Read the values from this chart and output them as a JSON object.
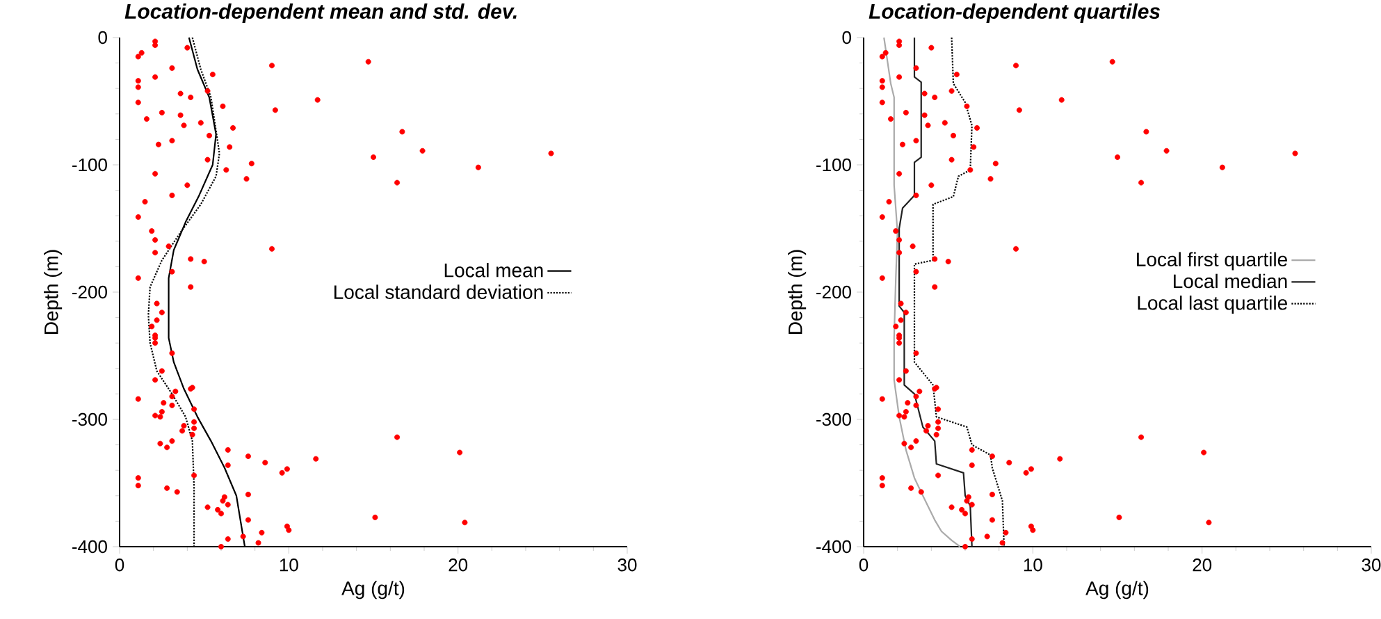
{
  "chart_data": [
    {
      "type": "scatter",
      "title": "Location-dependent mean and std. dev.",
      "xlabel": "Ag (g/t)",
      "ylabel": "Depth (m)",
      "xlim": [
        0,
        30
      ],
      "ylim": [
        -400,
        0
      ],
      "xticks": [
        0,
        10,
        20,
        30
      ],
      "yticks": [
        -400,
        -300,
        -200,
        -100,
        0
      ],
      "legend": "right",
      "series": [
        {
          "color": "#ff0000",
          "marker": "circle",
          "x": [
            2.1,
            2.1,
            4.0,
            1.3,
            1.1,
            3.1,
            9.0,
            14.7,
            5.5,
            2.1,
            1.1,
            1.1,
            3.6,
            4.2,
            5.2,
            11.7,
            1.1,
            6.1,
            9.2,
            2.5,
            3.6,
            1.6,
            4.8,
            3.8,
            6.7,
            5.3,
            3.1,
            2.3,
            6.5,
            15.0,
            5.2,
            7.8,
            6.3,
            2.1,
            7.5,
            4.0,
            3.1,
            1.5,
            1.1,
            9.0,
            1.9,
            2.1,
            2.1,
            2.9,
            4.2,
            5.0,
            3.1,
            1.1,
            4.2,
            16.7,
            17.9,
            25.5,
            21.2,
            16.4,
            16.4,
            20.1,
            15.1,
            20.4,
            2.2,
            2.5,
            2.2,
            1.9,
            2.1,
            2.1,
            2.1,
            3.1,
            2.5,
            2.1,
            4.3,
            4.2,
            3.3,
            3.1,
            1.1,
            2.6,
            3.1,
            4.4,
            2.5,
            2.1,
            2.4,
            4.4,
            3.8,
            4.4,
            3.7,
            4.3,
            3.1,
            2.4,
            2.8,
            6.4,
            7.6,
            11.6,
            8.6,
            6.4,
            9.9,
            9.6,
            4.4,
            1.1,
            1.1,
            2.8,
            3.4,
            7.6,
            6.2,
            6.1,
            6.4,
            5.2,
            5.8,
            6.0,
            7.6,
            9.9,
            10.0,
            8.4,
            7.3,
            6.4,
            8.2,
            6.0
          ],
          "values": [
            -3,
            -6,
            -8,
            -12,
            -15,
            -24,
            -22,
            -19,
            -29,
            -31,
            -34,
            -39,
            -44,
            -47,
            -42,
            -49,
            -51,
            -54,
            -57,
            -59,
            -61,
            -64,
            -67,
            -69,
            -71,
            -77,
            -81,
            -84,
            -86,
            -94,
            -96,
            -99,
            -104,
            -107,
            -111,
            -116,
            -124,
            -129,
            -141,
            -166,
            -152,
            -159,
            -169,
            -164,
            -174,
            -176,
            -184,
            -189,
            -196,
            -74,
            -89,
            -91,
            -102,
            -114,
            -314,
            -326,
            -377,
            -381,
            -209,
            -216,
            -222,
            -227,
            -234,
            -236,
            -240,
            -248,
            -262,
            -269,
            -275,
            -276,
            -278,
            -282,
            -284,
            -287,
            -289,
            -292,
            -294,
            -297,
            -298,
            -302,
            -305,
            -307,
            -309,
            -312,
            -317,
            -319,
            -322,
            -324,
            -329,
            -331,
            -334,
            -336,
            -339,
            -342,
            -344,
            -346,
            -352,
            -354,
            -357,
            -359,
            -361,
            -364,
            -367,
            -369,
            -371,
            -374,
            -379,
            -384,
            -387,
            -389,
            -392,
            -394,
            -397,
            -400
          ]
        },
        {
          "type": "line",
          "name": "Local mean",
          "color": "#000000",
          "line_style": "solid",
          "marker": "none",
          "x": [
            4.1,
            4.6,
            5.3,
            5.7,
            5.5,
            4.7,
            3.9,
            3.2,
            2.9,
            2.9,
            3.2,
            3.8,
            4.6,
            5.4,
            6.2,
            6.9,
            7.4
          ],
          "values": [
            0,
            -25,
            -47,
            -76,
            -100,
            -124,
            -145,
            -167,
            -189,
            -236,
            -255,
            -276,
            -298,
            -317,
            -338,
            -360,
            -400
          ]
        },
        {
          "type": "line",
          "name": "Local standard deviation",
          "color": "#000000",
          "line_style": "dotted",
          "marker": "none",
          "x": [
            4.3,
            4.8,
            5.4,
            5.9,
            5.7,
            4.8,
            3.6,
            2.5,
            1.8,
            1.7,
            1.8,
            2.2,
            3.1,
            3.9,
            4.3,
            4.4,
            4.4
          ],
          "values": [
            0,
            -25,
            -47,
            -91,
            -109,
            -131,
            -153,
            -175,
            -196,
            -218,
            -240,
            -262,
            -280,
            -298,
            -317,
            -353,
            -400
          ]
        }
      ]
    },
    {
      "type": "scatter",
      "title": "Location-dependent quartiles",
      "xlabel": "Ag (g/t)",
      "ylabel": "Depth (m)",
      "xlim": [
        0,
        30
      ],
      "ylim": [
        -400,
        0
      ],
      "xticks": [
        0,
        10,
        20,
        30
      ],
      "yticks": [
        -400,
        -300,
        -200,
        -100,
        0
      ],
      "legend": "right",
      "series": [
        {
          "color": "#ff0000",
          "marker": "circle",
          "x": [
            2.1,
            2.1,
            4.0,
            1.3,
            1.1,
            3.1,
            9.0,
            14.7,
            5.5,
            2.1,
            1.1,
            1.1,
            3.6,
            4.2,
            5.2,
            11.7,
            1.1,
            6.1,
            9.2,
            2.5,
            3.6,
            1.6,
            4.8,
            3.8,
            6.7,
            5.3,
            3.1,
            2.3,
            6.5,
            15.0,
            5.2,
            7.8,
            6.3,
            2.1,
            7.5,
            4.0,
            3.1,
            1.5,
            1.1,
            9.0,
            1.9,
            2.1,
            2.1,
            2.9,
            4.2,
            5.0,
            3.1,
            1.1,
            4.2,
            16.7,
            17.9,
            25.5,
            21.2,
            16.4,
            16.4,
            20.1,
            15.1,
            20.4,
            2.2,
            2.5,
            2.2,
            1.9,
            2.1,
            2.1,
            2.1,
            3.1,
            2.5,
            2.1,
            4.3,
            4.2,
            3.3,
            3.1,
            1.1,
            2.6,
            3.1,
            4.4,
            2.5,
            2.1,
            2.4,
            4.4,
            3.8,
            4.4,
            3.7,
            4.3,
            3.1,
            2.4,
            2.8,
            6.4,
            7.6,
            11.6,
            8.6,
            6.4,
            9.9,
            9.6,
            4.4,
            1.1,
            1.1,
            2.8,
            3.4,
            7.6,
            6.2,
            6.1,
            6.4,
            5.2,
            5.8,
            6.0,
            7.6,
            9.9,
            10.0,
            8.4,
            7.3,
            6.4,
            8.2,
            6.0
          ],
          "values": [
            -3,
            -6,
            -8,
            -12,
            -15,
            -24,
            -22,
            -19,
            -29,
            -31,
            -34,
            -39,
            -44,
            -47,
            -42,
            -49,
            -51,
            -54,
            -57,
            -59,
            -61,
            -64,
            -67,
            -69,
            -71,
            -77,
            -81,
            -84,
            -86,
            -94,
            -96,
            -99,
            -104,
            -107,
            -111,
            -116,
            -124,
            -129,
            -141,
            -166,
            -152,
            -159,
            -169,
            -164,
            -174,
            -176,
            -184,
            -189,
            -196,
            -74,
            -89,
            -91,
            -102,
            -114,
            -314,
            -326,
            -377,
            -381,
            -209,
            -216,
            -222,
            -227,
            -234,
            -236,
            -240,
            -248,
            -262,
            -269,
            -275,
            -276,
            -278,
            -282,
            -284,
            -287,
            -289,
            -292,
            -294,
            -297,
            -298,
            -302,
            -305,
            -307,
            -309,
            -312,
            -317,
            -319,
            -322,
            -324,
            -329,
            -331,
            -334,
            -336,
            -339,
            -342,
            -344,
            -346,
            -352,
            -354,
            -357,
            -359,
            -361,
            -364,
            -367,
            -369,
            -371,
            -374,
            -379,
            -384,
            -387,
            -389,
            -392,
            -394,
            -397,
            -400
          ]
        },
        {
          "type": "line",
          "name": "Local first quartile",
          "color": "#aaaaaa",
          "line_style": "solid",
          "marker": "none",
          "x": [
            1.2,
            1.6,
            1.8,
            1.8,
            2.0,
            1.9,
            1.8,
            1.8,
            2.1,
            2.5,
            3.0,
            3.5,
            4.2,
            4.6,
            5.2,
            5.7
          ],
          "values": [
            0,
            -36,
            -47,
            -116,
            -153,
            -189,
            -236,
            -269,
            -298,
            -324,
            -346,
            -360,
            -379,
            -388,
            -395,
            -400
          ]
        },
        {
          "type": "line",
          "name": "Local median",
          "color": "#222222",
          "line_style": "solid",
          "marker": "none",
          "x": [
            3.0,
            3.0,
            3.4,
            3.4,
            3.0,
            3.0,
            2.3,
            2.1,
            2.1,
            2.4,
            2.4,
            3.0,
            3.5,
            4.2,
            4.3,
            5.9,
            6.0,
            6.3,
            6.4
          ],
          "values": [
            0,
            -31,
            -35,
            -94,
            -98,
            -124,
            -134,
            -150,
            -211,
            -216,
            -273,
            -280,
            -306,
            -317,
            -335,
            -342,
            -360,
            -368,
            -400
          ]
        },
        {
          "type": "line",
          "name": "Local last quartile",
          "color": "#000000",
          "line_style": "dotted",
          "marker": "none",
          "x": [
            5.2,
            5.3,
            6.0,
            6.4,
            6.3,
            5.6,
            5.3,
            4.1,
            4.1,
            3.0,
            3.0,
            4.1,
            4.3,
            6.1,
            6.4,
            7.5,
            7.6,
            8.2,
            8.3
          ],
          "values": [
            0,
            -36,
            -51,
            -69,
            -104,
            -109,
            -125,
            -131,
            -175,
            -178,
            -255,
            -273,
            -298,
            -306,
            -320,
            -328,
            -338,
            -364,
            -400
          ]
        }
      ]
    }
  ]
}
